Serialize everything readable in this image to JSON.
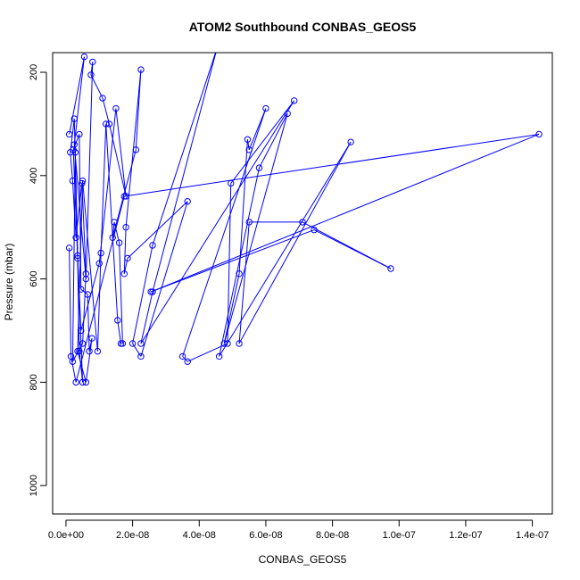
{
  "chart_data": {
    "type": "line",
    "title": "ATOM2 Southbound CONBAS_GEOS5",
    "xlabel": "CONBAS_GEOS5",
    "ylabel": "Pressure (mbar)",
    "xlim": [
      -4e-09,
      1.46e-07
    ],
    "ylim": [
      1055,
      162
    ],
    "y_reversed": true,
    "grid": false,
    "legend": "none",
    "x_ticks": [
      0,
      2e-08,
      4e-08,
      6e-08,
      8e-08,
      1e-07,
      1.2e-07,
      1.4e-07
    ],
    "x_tick_labels": [
      "0.0e+00",
      "2.0e-08",
      "4.0e-08",
      "6.0e-08",
      "8.0e-08",
      "1.0e-07",
      "1.2e-07",
      "1.4e-07"
    ],
    "y_ticks": [
      200,
      400,
      600,
      800,
      1000
    ],
    "y_tick_labels": [
      "200",
      "400",
      "600",
      "800",
      "1000"
    ],
    "colors": {
      "series": "#0000ff",
      "axis": "#000000",
      "background": "#ffffff"
    },
    "series": [
      {
        "marker": "open-circle",
        "line": "solid",
        "x": [
          1e-09,
          5.5e-09,
          2.5e-09,
          6e-09,
          8e-09,
          7.5e-09,
          1.1e-08,
          1.3e-08,
          1.8e-08,
          1.5e-08,
          1e-08,
          4.5e-09,
          3.5e-09,
          2.5e-09,
          1.3e-09,
          2e-09,
          3e-09,
          4.8e-09,
          6e-09,
          5e-09,
          2e-09,
          2.8e-09,
          3.5e-09,
          4e-09,
          5e-09,
          2.2e-09,
          4e-09,
          4.5e-09,
          6.5e-09,
          7e-09,
          7.8e-09,
          6e-09,
          3.5e-09,
          5e-09,
          9.5e-09,
          1.05e-08,
          1.2e-08,
          1.55e-08,
          1.65e-08,
          1.7e-08,
          1.6e-08,
          1.45e-08,
          1.4e-08,
          2.1e-08,
          2.25e-08,
          1.8e-08,
          1.75e-08,
          1.85e-08,
          3.65e-08,
          2.25e-08,
          2e-08,
          2.6e-08,
          4.55e-08,
          2.6e-08,
          2.25e-08,
          6.85e-08,
          4.95e-08,
          4.85e-08,
          3.65e-08,
          3.5e-08,
          6e-08,
          5.5e-08,
          5.45e-08,
          5.2e-08,
          4.75e-08,
          6.65e-08,
          5.8e-08,
          4.6e-08,
          8.55e-08,
          5.2e-08,
          5.5e-08,
          7.1e-08,
          9.75e-08,
          7.45e-08,
          2.55e-08,
          1.42e-07,
          1.75e-08,
          3e-09,
          1.5e-09,
          1e-09
        ],
        "y": [
          320,
          170,
          340,
          600,
          180,
          205,
          250,
          300,
          440,
          270,
          570,
          700,
          555,
          290,
          355,
          410,
          520,
          415,
          590,
          725,
          760,
          355,
          560,
          740,
          800,
          350,
          320,
          620,
          630,
          740,
          715,
          800,
          740,
          410,
          740,
          550,
          300,
          680,
          725,
          725,
          530,
          490,
          520,
          350,
          195,
          500,
          590,
          560,
          450,
          750,
          725,
          535,
          150,
          625,
          725,
          255,
          415,
          725,
          760,
          750,
          270,
          350,
          330,
          590,
          725,
          280,
          385,
          750,
          335,
          725,
          490,
          490,
          580,
          505,
          625,
          320,
          440,
          800,
          750,
          540
        ]
      }
    ]
  }
}
